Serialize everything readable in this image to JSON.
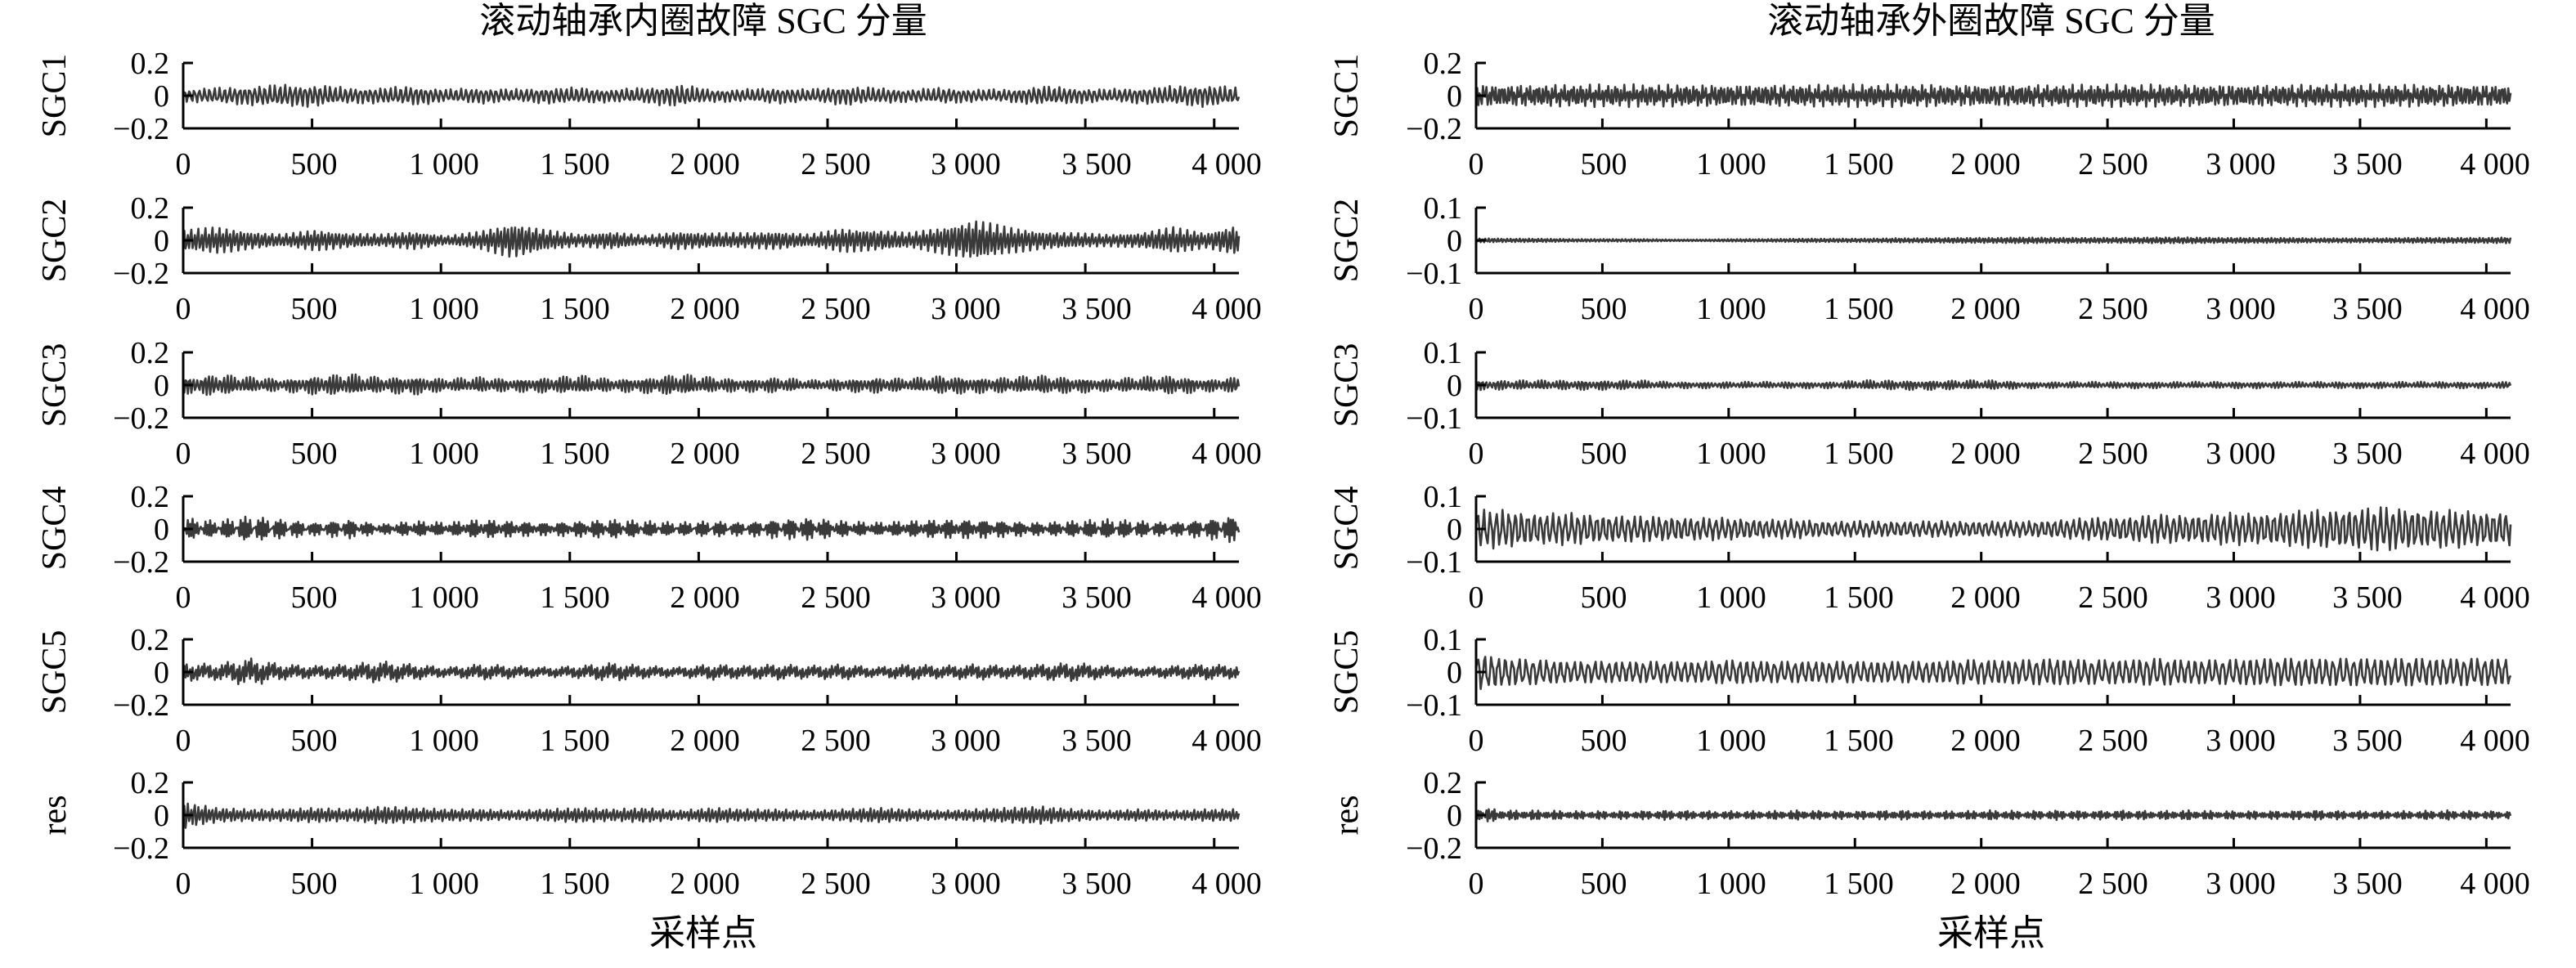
{
  "colors": {
    "signal": "#3a3a3a",
    "axis": "#000000",
    "background": "#ffffff"
  },
  "panels": [
    {
      "title": "滚动轴承内圈故障 SGC 分量",
      "xlabel": "采样点",
      "x_ticks": [
        "0",
        "500",
        "1 000",
        "1 500",
        "2 000",
        "2 500",
        "3 000",
        "3 500",
        "4 000"
      ],
      "rows": [
        {
          "ylabel": "SGC1",
          "y_ticks": [
            "0.2",
            "0",
            "−0.2"
          ]
        },
        {
          "ylabel": "SGC2",
          "y_ticks": [
            "0.2",
            "0",
            "−0.2"
          ]
        },
        {
          "ylabel": "SGC3",
          "y_ticks": [
            "0.2",
            "0",
            "−0.2"
          ]
        },
        {
          "ylabel": "SGC4",
          "y_ticks": [
            "0.2",
            "0",
            "−0.2"
          ]
        },
        {
          "ylabel": "SGC5",
          "y_ticks": [
            "0.2",
            "0",
            "−0.2"
          ]
        },
        {
          "ylabel": "res",
          "y_ticks": [
            "0.2",
            "0",
            "−0.2"
          ]
        }
      ]
    },
    {
      "title": "滚动轴承外圈故障 SGC 分量",
      "xlabel": "采样点",
      "x_ticks": [
        "0",
        "500",
        "1 000",
        "1 500",
        "2 000",
        "2 500",
        "3 000",
        "3 500",
        "4 000"
      ],
      "rows": [
        {
          "ylabel": "SGC1",
          "y_ticks": [
            "0.2",
            "0",
            "−0.2"
          ]
        },
        {
          "ylabel": "SGC2",
          "y_ticks": [
            "0.1",
            "0",
            "−0.1"
          ]
        },
        {
          "ylabel": "SGC3",
          "y_ticks": [
            "0.1",
            "0",
            "−0.1"
          ]
        },
        {
          "ylabel": "SGC4",
          "y_ticks": [
            "0.1",
            "0",
            "−0.1"
          ]
        },
        {
          "ylabel": "SGC5",
          "y_ticks": [
            "0.1",
            "0",
            "−0.1"
          ]
        },
        {
          "ylabel": "res",
          "y_ticks": [
            "0.2",
            "0",
            "−0.2"
          ]
        }
      ]
    }
  ],
  "chart_data": [
    {
      "type": "line",
      "title": "滚动轴承内圈故障 SGC 分量",
      "xlabel": "采样点",
      "xlim": [
        0,
        4096
      ],
      "x_ticks": [
        0,
        500,
        1000,
        1500,
        2000,
        2500,
        3000,
        3500,
        4000
      ],
      "grid": false,
      "series": [
        {
          "name": "SGC1",
          "ylim": [
            -0.2,
            0.2
          ],
          "y_ticks": [
            0.2,
            0,
            -0.2
          ],
          "cycles": 210,
          "amplitude": [
            0.04,
            0.05,
            0.06,
            0.07,
            0.07,
            0.05,
            0.05,
            0.06,
            0.04,
            0.05,
            0.04,
            0.05,
            0.05,
            0.04,
            0.05,
            0.07,
            0.04,
            0.04,
            0.05,
            0.04,
            0.06,
            0.05,
            0.04,
            0.05,
            0.04,
            0.04,
            0.06,
            0.05,
            0.04,
            0.05,
            0.06,
            0.07,
            0.05
          ]
        },
        {
          "name": "SGC2",
          "ylim": [
            -0.2,
            0.2
          ],
          "y_ticks": [
            0.2,
            0,
            -0.2
          ],
          "cycles": 1200,
          "amplitude": [
            0.07,
            0.09,
            0.06,
            0.04,
            0.07,
            0.05,
            0.04,
            0.06,
            0.03,
            0.06,
            0.12,
            0.07,
            0.04,
            0.06,
            0.03,
            0.06,
            0.05,
            0.05,
            0.06,
            0.04,
            0.08,
            0.07,
            0.05,
            0.09,
            0.14,
            0.09,
            0.06,
            0.05,
            0.04,
            0.05,
            0.09,
            0.05,
            0.11
          ]
        },
        {
          "name": "SGC3",
          "ylim": [
            -0.2,
            0.2
          ],
          "y_ticks": [
            0.2,
            0,
            -0.2
          ],
          "cycles": 620,
          "amplitude": [
            0.05,
            0.07,
            0.05,
            0.04,
            0.06,
            0.07,
            0.05,
            0.06,
            0.04,
            0.05,
            0.04,
            0.05,
            0.06,
            0.04,
            0.05,
            0.07,
            0.05,
            0.04,
            0.05,
            0.03,
            0.04,
            0.05,
            0.04,
            0.06,
            0.05,
            0.05,
            0.06,
            0.05,
            0.04,
            0.05,
            0.06,
            0.04,
            0.05
          ]
        },
        {
          "name": "SGC4",
          "ylim": [
            -0.2,
            0.2
          ],
          "y_ticks": [
            0.2,
            0,
            -0.2
          ],
          "cycles": 480,
          "amplitude": [
            0.07,
            0.05,
            0.08,
            0.06,
            0.04,
            0.06,
            0.03,
            0.05,
            0.04,
            0.06,
            0.05,
            0.04,
            0.05,
            0.06,
            0.05,
            0.04,
            0.05,
            0.04,
            0.06,
            0.07,
            0.05,
            0.04,
            0.05,
            0.06,
            0.06,
            0.05,
            0.04,
            0.05,
            0.06,
            0.05,
            0.04,
            0.06,
            0.09
          ]
        },
        {
          "name": "SGC5",
          "ylim": [
            -0.2,
            0.2
          ],
          "y_ticks": [
            0.2,
            0,
            -0.2
          ],
          "cycles": 360,
          "amplitude": [
            0.06,
            0.05,
            0.09,
            0.05,
            0.04,
            0.05,
            0.07,
            0.05,
            0.03,
            0.05,
            0.04,
            0.03,
            0.04,
            0.06,
            0.04,
            0.03,
            0.05,
            0.04,
            0.05,
            0.04,
            0.05,
            0.03,
            0.05,
            0.04,
            0.05,
            0.04,
            0.05,
            0.06,
            0.04,
            0.03,
            0.04,
            0.05,
            0.04
          ]
        },
        {
          "name": "res",
          "ylim": [
            -0.2,
            0.2
          ],
          "y_ticks": [
            0.2,
            0,
            -0.2
          ],
          "cycles": 300,
          "amplitude": [
            0.09,
            0.05,
            0.04,
            0.04,
            0.05,
            0.04,
            0.06,
            0.05,
            0.04,
            0.04,
            0.03,
            0.04,
            0.05,
            0.04,
            0.05,
            0.03,
            0.05,
            0.04,
            0.04,
            0.03,
            0.04,
            0.05,
            0.04,
            0.03,
            0.04,
            0.05,
            0.06,
            0.04,
            0.03,
            0.04,
            0.03,
            0.04,
            0.04
          ]
        }
      ]
    },
    {
      "type": "line",
      "title": "滚动轴承外圈故障 SGC 分量",
      "xlabel": "采样点",
      "xlim": [
        0,
        4096
      ],
      "x_ticks": [
        0,
        500,
        1000,
        1500,
        2000,
        2500,
        3000,
        3500,
        4000
      ],
      "grid": false,
      "series": [
        {
          "name": "SGC1",
          "ylim": [
            -0.2,
            0.2
          ],
          "y_ticks": [
            0.2,
            0,
            -0.2
          ],
          "cycles": 330,
          "amplitude": [
            0.07,
            0.07,
            0.07,
            0.07,
            0.07,
            0.07,
            0.07,
            0.07,
            0.07,
            0.07,
            0.07,
            0.07,
            0.07,
            0.07,
            0.07,
            0.07,
            0.07,
            0.07,
            0.07,
            0.07,
            0.07,
            0.07,
            0.07,
            0.07,
            0.07,
            0.07,
            0.07,
            0.07,
            0.07,
            0.07,
            0.07,
            0.07,
            0.07
          ]
        },
        {
          "name": "SGC2",
          "ylim": [
            -0.1,
            0.1
          ],
          "y_ticks": [
            0.1,
            0,
            -0.1
          ],
          "cycles": 900,
          "amplitude": [
            0.025,
            0.02,
            0.02,
            0.015,
            0.015,
            0.015,
            0.01,
            0.01,
            0.015,
            0.015,
            0.02,
            0.02,
            0.02,
            0.025,
            0.025,
            0.03,
            0.03,
            0.035,
            0.03,
            0.03,
            0.03,
            0.035,
            0.035,
            0.03,
            0.03,
            0.03,
            0.025,
            0.025,
            0.025,
            0.03,
            0.03,
            0.03,
            0.035
          ]
        },
        {
          "name": "SGC3",
          "ylim": [
            -0.1,
            0.1
          ],
          "y_ticks": [
            0.1,
            0,
            -0.1
          ],
          "cycles": 620,
          "amplitude": [
            0.015,
            0.015,
            0.015,
            0.015,
            0.015,
            0.015,
            0.01,
            0.01,
            0.01,
            0.01,
            0.01,
            0.01,
            0.015,
            0.015,
            0.015,
            0.015,
            0.015,
            0.01,
            0.01,
            0.01,
            0.01,
            0.01,
            0.01,
            0.01,
            0.01,
            0.01,
            0.01,
            0.01,
            0.01,
            0.01,
            0.01,
            0.01,
            0.01
          ]
        },
        {
          "name": "SGC4",
          "ylim": [
            -0.1,
            0.1
          ],
          "y_ticks": [
            0.1,
            0,
            -0.1
          ],
          "cycles": 165,
          "amplitude": [
            0.06,
            0.06,
            0.05,
            0.05,
            0.045,
            0.04,
            0.04,
            0.035,
            0.035,
            0.03,
            0.03,
            0.025,
            0.025,
            0.025,
            0.025,
            0.025,
            0.025,
            0.025,
            0.03,
            0.035,
            0.04,
            0.045,
            0.045,
            0.05,
            0.05,
            0.055,
            0.06,
            0.065,
            0.07,
            0.065,
            0.06,
            0.055,
            0.055
          ]
        },
        {
          "name": "SGC5",
          "ylim": [
            -0.1,
            0.1
          ],
          "y_ticks": [
            0.1,
            0,
            -0.1
          ],
          "cycles": 150,
          "amplitude": [
            0.06,
            0.045,
            0.04,
            0.035,
            0.035,
            0.035,
            0.035,
            0.035,
            0.04,
            0.035,
            0.035,
            0.035,
            0.035,
            0.035,
            0.035,
            0.04,
            0.04,
            0.04,
            0.045,
            0.04,
            0.04,
            0.045,
            0.04,
            0.04,
            0.045,
            0.045,
            0.045,
            0.045,
            0.045,
            0.045,
            0.045,
            0.045,
            0.045
          ]
        },
        {
          "name": "res",
          "ylim": [
            -0.2,
            0.2
          ],
          "y_ticks": [
            0.2,
            0,
            -0.2
          ],
          "cycles": 520,
          "amplitude": [
            0.05,
            0.03,
            0.03,
            0.025,
            0.025,
            0.025,
            0.03,
            0.025,
            0.025,
            0.025,
            0.03,
            0.025,
            0.025,
            0.03,
            0.025,
            0.025,
            0.03,
            0.025,
            0.03,
            0.025,
            0.03,
            0.025,
            0.03,
            0.025,
            0.025,
            0.025,
            0.03,
            0.025,
            0.025,
            0.025,
            0.03,
            0.025,
            0.025
          ]
        }
      ]
    }
  ]
}
